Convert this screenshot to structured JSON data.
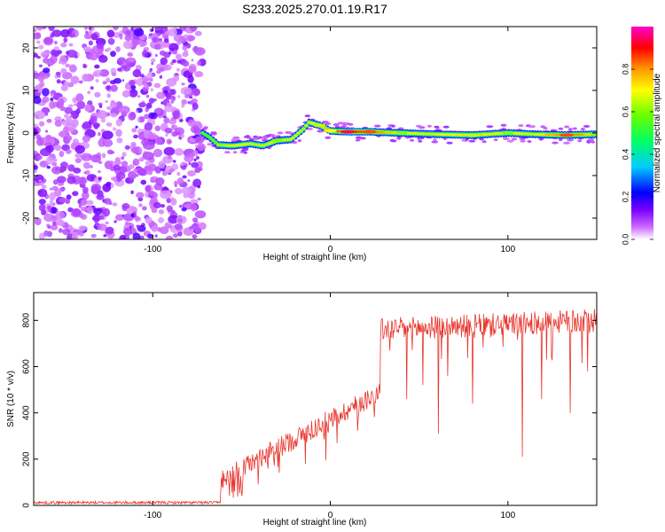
{
  "title": "S233.2025.270.01.19.R17",
  "chart_data": [
    {
      "type": "heatmap",
      "xlabel": "Height of straight line (km)",
      "ylabel": "Frequency (Hz)",
      "xlim": [
        -167,
        150
      ],
      "ylim": [
        -25,
        25
      ],
      "x_ticks": [
        -100,
        0,
        100
      ],
      "y_ticks": [
        -20,
        -10,
        0,
        10,
        20
      ],
      "grid": false,
      "noise_region": {
        "x_range": [
          -167,
          -72
        ],
        "note": "random low-amplitude speckle across the full frequency range"
      },
      "signal_track": [
        {
          "x": -72,
          "freq": 0.0,
          "amp": 0.3
        },
        {
          "x": -68,
          "freq": -1.0,
          "amp": 0.3
        },
        {
          "x": -63,
          "freq": -2.8,
          "amp": 0.45
        },
        {
          "x": -55,
          "freq": -3.0,
          "amp": 0.55
        },
        {
          "x": -45,
          "freq": -2.5,
          "amp": 0.55
        },
        {
          "x": -38,
          "freq": -3.0,
          "amp": 0.5
        },
        {
          "x": -30,
          "freq": -1.8,
          "amp": 0.6
        },
        {
          "x": -22,
          "freq": -1.5,
          "amp": 0.55
        },
        {
          "x": -15,
          "freq": 1.0,
          "amp": 0.5
        },
        {
          "x": -12,
          "freq": 2.5,
          "amp": 0.55
        },
        {
          "x": -6,
          "freq": 1.8,
          "amp": 0.65
        },
        {
          "x": 0,
          "freq": 0.5,
          "amp": 0.7
        },
        {
          "x": 10,
          "freq": 0.3,
          "amp": 0.95
        },
        {
          "x": 22,
          "freq": 0.3,
          "amp": 0.85
        },
        {
          "x": 40,
          "freq": 0.0,
          "amp": 0.6
        },
        {
          "x": 60,
          "freq": -0.3,
          "amp": 0.55
        },
        {
          "x": 80,
          "freq": -0.5,
          "amp": 0.65
        },
        {
          "x": 100,
          "freq": 0.0,
          "amp": 0.6
        },
        {
          "x": 115,
          "freq": -0.3,
          "amp": 0.55
        },
        {
          "x": 133,
          "freq": -0.5,
          "amp": 0.85
        },
        {
          "x": 150,
          "freq": -0.3,
          "amp": 0.6
        }
      ]
    },
    {
      "type": "line",
      "xlabel": "Height of straight line (km)",
      "ylabel": "SNR (10 * v/v)",
      "xlim": [
        -167,
        150
      ],
      "ylim": [
        0,
        920
      ],
      "x_ticks": [
        -100,
        0,
        100
      ],
      "y_ticks": [
        0,
        200,
        400,
        600,
        800
      ],
      "grid": false,
      "color": "#e8362e",
      "segments": [
        {
          "x": [
            -167,
            -62
          ],
          "mean": 12,
          "noise": 6
        },
        {
          "x": [
            -62,
            28
          ],
          "mean_start": 110,
          "mean_end": 490,
          "noise": 45
        },
        {
          "x": [
            28,
            150
          ],
          "mean_start": 760,
          "mean_end": 800,
          "noise": 50
        }
      ],
      "deep_dips": [
        {
          "x": 43,
          "y": 460
        },
        {
          "x": 52,
          "y": 520
        },
        {
          "x": 61,
          "y": 310
        },
        {
          "x": 66,
          "y": 560
        },
        {
          "x": 80,
          "y": 440
        },
        {
          "x": 108,
          "y": 210
        },
        {
          "x": 119,
          "y": 460
        },
        {
          "x": 135,
          "y": 400
        },
        {
          "x": 145,
          "y": 580
        }
      ]
    }
  ],
  "colorbar": {
    "label": "Normalized spectral amplitude",
    "range": [
      0,
      1
    ],
    "ticks": [
      "0.0",
      "0.2",
      "0.4",
      "0.6",
      "0.8"
    ],
    "tick_values": [
      0,
      0.2,
      0.4,
      0.6,
      0.8
    ],
    "colors": [
      "#ffffff",
      "#cc66ff",
      "#7700ff",
      "#0000ff",
      "#00ccff",
      "#00ff66",
      "#66ff00",
      "#ffff00",
      "#ff9900",
      "#ff0000",
      "#ff00cc"
    ]
  }
}
